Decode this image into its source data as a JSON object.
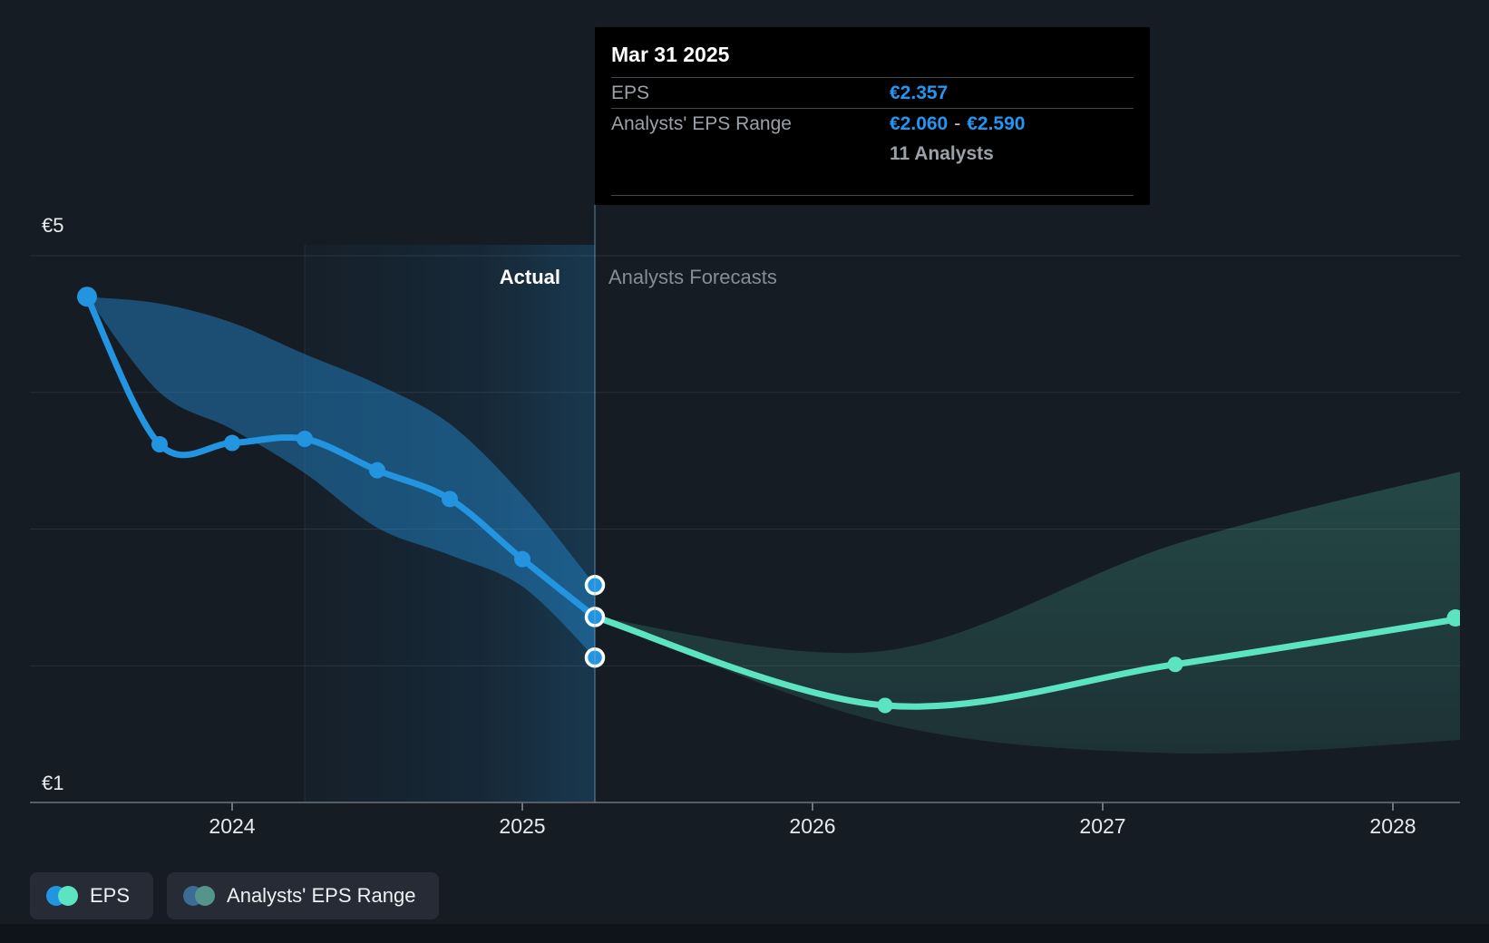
{
  "tooltip": {
    "title": "Mar 31 2025",
    "eps_label": "EPS",
    "eps_value": "€2.357",
    "range_label": "Analysts' EPS Range",
    "range_low": "€2.060",
    "range_separator": "-",
    "range_high": "€2.590",
    "analysts_count": "11 Analysts"
  },
  "chart_labels": {
    "actual": "Actual",
    "forecast": "Analysts Forecasts"
  },
  "y_axis": {
    "top_label": "€5",
    "bottom_label": "€1"
  },
  "x_axis": {
    "year_labels": [
      "2024",
      "2025",
      "2026",
      "2027",
      "2028"
    ]
  },
  "legend": {
    "eps": "EPS",
    "range": "Analysts' EPS Range"
  },
  "colors": {
    "background": "#151c24",
    "eps_blue": "#2394df",
    "forecast_teal": "#5ce3c2",
    "eps_band_fill": "rgba(35,148,223,0.42)",
    "value_blue": "#2196f3",
    "legend_muted_blue": "#3b6c94",
    "legend_muted_teal": "#55948a",
    "tooltip_bg": "#000000",
    "grid_line": "rgba(255,255,255,0.09)",
    "axis_line": "#575e66",
    "divider_line": "rgba(125,175,215,0.35)"
  },
  "chart_data": {
    "type": "line",
    "title": "EPS actual and analysts forecast",
    "currency": "€",
    "ylabel": "EPS",
    "ylim": [
      1,
      5
    ],
    "y_gridlines": [
      5,
      4,
      3,
      2,
      1
    ],
    "x_tick_years": [
      2024,
      2025,
      2026,
      2027,
      2028
    ],
    "divider": {
      "date": "Mar 31 2025",
      "t": 2025.25
    },
    "highlight_span": {
      "from_t": 2024.25,
      "to_t": 2025.25
    },
    "series": [
      {
        "name": "EPS",
        "kind": "actual",
        "points": [
          {
            "date": "Jun 30 2023",
            "t": 2023.5,
            "eps": 4.7,
            "range_high": 4.7,
            "range_low": 4.7
          },
          {
            "date": "Sep 30 2023",
            "t": 2023.75,
            "eps": 3.62,
            "range_high": 4.65,
            "range_low": 4.0
          },
          {
            "date": "Dec 31 2023",
            "t": 2024.0,
            "eps": 3.63,
            "range_high": 4.51,
            "range_low": 3.73
          },
          {
            "date": "Mar 31 2024",
            "t": 2024.25,
            "eps": 3.66,
            "range_high": 4.28,
            "range_low": 3.41
          },
          {
            "date": "Jun 30 2024",
            "t": 2024.5,
            "eps": 3.43,
            "range_high": 4.06,
            "range_low": 3.01
          },
          {
            "date": "Sep 30 2024",
            "t": 2024.75,
            "eps": 3.22,
            "range_high": 3.77,
            "range_low": 2.81
          },
          {
            "date": "Dec 31 2024",
            "t": 2025.0,
            "eps": 2.78,
            "range_high": 3.25,
            "range_low": 2.58
          },
          {
            "date": "Mar 31 2025",
            "t": 2025.25,
            "eps": 2.357,
            "range_high": 2.59,
            "range_low": 2.06
          }
        ]
      },
      {
        "name": "Analysts Forecast",
        "kind": "forecast",
        "analysts": 11,
        "points": [
          {
            "date": "Mar 31 2025",
            "t": 2025.25,
            "eps": 2.357,
            "range_high": 2.357,
            "range_low": 2.357
          },
          {
            "date": "Mar 31 2026",
            "t": 2026.25,
            "eps": 1.71,
            "range_high": 2.11,
            "range_low": 1.58
          },
          {
            "date": "Mar 31 2027",
            "t": 2027.25,
            "eps": 2.01,
            "range_high": 2.89,
            "range_low": 1.36
          },
          {
            "date": "Mar 31 2028",
            "t": 2028.25,
            "eps": 2.35,
            "range_high": 3.43,
            "range_low": 1.46
          }
        ]
      }
    ]
  }
}
